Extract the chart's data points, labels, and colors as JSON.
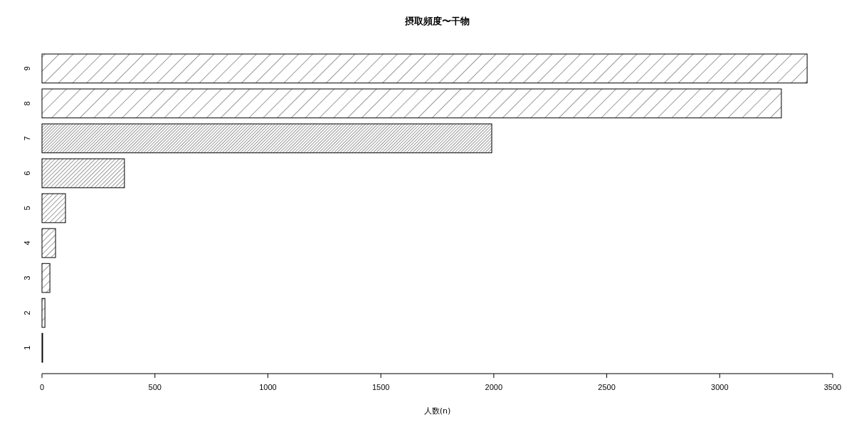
{
  "chart_data": {
    "type": "bar",
    "orientation": "horizontal",
    "title": "摂取頻度〜干物",
    "xlabel": "人数(n)",
    "categories": [
      "9",
      "8",
      "7",
      "6",
      "5",
      "4",
      "3",
      "2",
      "1"
    ],
    "values": [
      3387,
      3273,
      1991,
      365,
      104,
      60,
      35,
      13,
      3
    ],
    "color": "#000000",
    "xlim": [
      0,
      3500
    ],
    "xticks": [
      0,
      500,
      1000,
      1500,
      2000,
      2500,
      3000,
      3500
    ],
    "grid": false
  }
}
